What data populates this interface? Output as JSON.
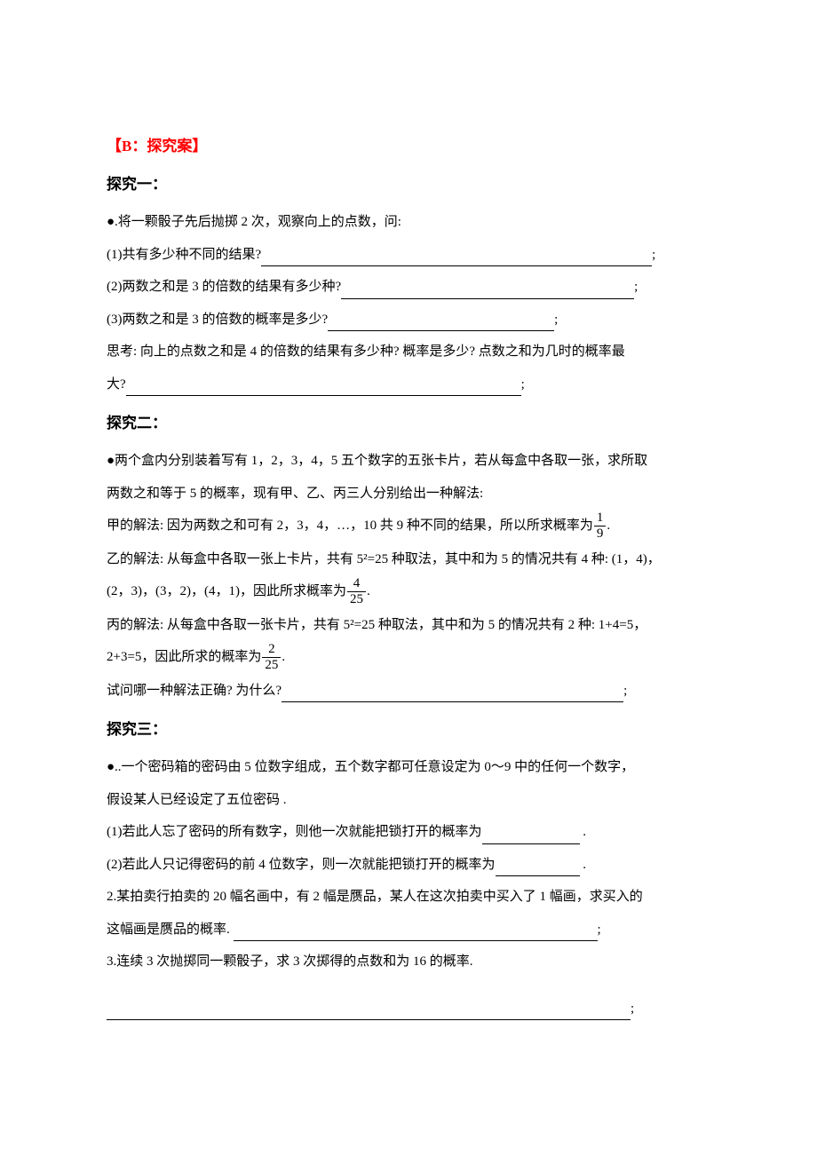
{
  "headers": {
    "section": "【B：探究案】",
    "explore1": "探究一：",
    "explore2": "探究二：",
    "explore3": "探究三："
  },
  "explore1": {
    "intro": "●.将一颗骰子先后抛掷 2 次，观察向上的点数，问:",
    "q1": "(1)共有多少种不同的结果?",
    "q2": "(2)两数之和是 3 的倍数的结果有多少种?",
    "q3": "(3)两数之和是 3 的倍数的概率是多少?",
    "think_a": "思考: 向上的点数之和是 4 的倍数的结果有多少种? 概率是多少? 点数之和为几时的概率最",
    "think_b": "大?"
  },
  "explore2": {
    "intro_a": "●两个盒内分别装着写有 1，2，3，4，5 五个数字的五张卡片，若从每盒中各取一张，求所取",
    "intro_b": "两数之和等于 5 的概率，现有甲、乙、丙三人分别给出一种解法:",
    "jia_a": "甲的解法: 因为两数之和可有 2，3，4，…，10 共 9 种不同的结果，所以所求概率为",
    "jia_frac_num": "1",
    "jia_frac_den": "9",
    "yi_a": "乙的解法: 从每盒中各取一张上卡片，共有 5²=25 种取法，其中和为 5 的情况共有 4 种: (1，4)，",
    "yi_b": "(2，3)，(3，2)，(4，1)，因此所求概率为",
    "yi_frac_num": "4",
    "yi_frac_den": "25",
    "bing_a": "丙的解法: 从每盒中各取一张卡片，共有 5²=25 种取法，其中和为 5 的情况共有 2 种: 1+4=5，",
    "bing_b": "2+3=5，因此所求的概率为",
    "bing_frac_num": "2",
    "bing_frac_den": "25",
    "ask": "试问哪一种解法正确? 为什么?"
  },
  "explore3": {
    "p1_a": "●..一个密码箱的密码由 5 位数字组成，五个数字都可任意设定为 0～9 中的任何一个数字，",
    "p1_b": "假设某人已经设定了五位密码 .",
    "p1_q1": "(1)若此人忘了密码的所有数字，则他一次就能把锁打开的概率为",
    "p1_q2": "(2)若此人只记得密码的前 4 位数字，则一次就能把锁打开的概率为",
    "p2_a": "2.某拍卖行拍卖的 20 幅名画中，有 2 幅是赝品，某人在这次拍卖中买入了 1 幅画，求买入的",
    "p2_b": "这幅画是赝品的概率.",
    "p3": "3.连续 3 次抛掷同一颗骰子，求 3 次掷得的点数和为 16 的概率."
  },
  "punct": {
    "semicolon": ";",
    "period": ".",
    "period_wide": " ."
  },
  "colors": {
    "header": "#ff0000",
    "text": "#000000",
    "background": "#ffffff"
  },
  "typography": {
    "body_fontsize": 15,
    "header_fontsize": 17,
    "line_height": 2.3
  }
}
